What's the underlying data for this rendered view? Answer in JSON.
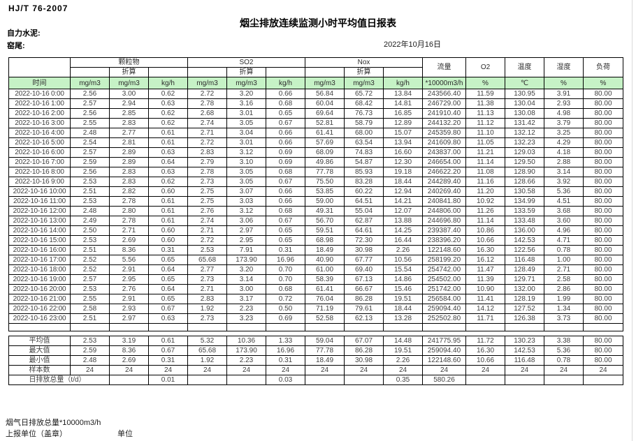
{
  "page": {
    "standard": "HJ/T 76-2007",
    "title": "烟尘排放连续监测小时平均值日报表",
    "company": "自力水泥:",
    "stack": "窑尾:",
    "date": "2022年10月16日"
  },
  "table": {
    "time_header": "时间",
    "groups": [
      "颗粒物",
      "SO2",
      "Nox"
    ],
    "converted_label": "折算",
    "single_cols": [
      "流量",
      "O2",
      "温度",
      "湿度",
      "负荷"
    ],
    "units": [
      "mg/m3",
      "mg/m3",
      "kg/h",
      "mg/m3",
      "mg/m3",
      "kg/h",
      "mg/m3",
      "mg/m3",
      "kg/h",
      "*10000m3/h",
      "%",
      "℃",
      "%",
      "%"
    ],
    "rows": [
      {
        "time": "2022-10-16 0:00",
        "values": [
          "2.56",
          "3.00",
          "0.62",
          "2.72",
          "3.20",
          "0.66",
          "56.84",
          "65.72",
          "13.84",
          "243566.40",
          "11.59",
          "130.95",
          "3.91",
          "80.00"
        ]
      },
      {
        "time": "2022-10-16 1:00",
        "values": [
          "2.57",
          "2.94",
          "0.63",
          "2.78",
          "3.16",
          "0.68",
          "60.04",
          "68.42",
          "14.81",
          "246729.00",
          "11.38",
          "130.04",
          "2.93",
          "80.00"
        ]
      },
      {
        "time": "2022-10-16 2:00",
        "values": [
          "2.56",
          "2.85",
          "0.62",
          "2.68",
          "3.01",
          "0.65",
          "69.64",
          "76.73",
          "16.85",
          "241910.40",
          "11.13",
          "130.08",
          "4.98",
          "80.00"
        ]
      },
      {
        "time": "2022-10-16 3:00",
        "values": [
          "2.55",
          "2.83",
          "0.62",
          "2.74",
          "3.05",
          "0.67",
          "52.81",
          "58.79",
          "12.89",
          "244132.20",
          "11.12",
          "131.42",
          "3.79",
          "80.00"
        ]
      },
      {
        "time": "2022-10-16 4:00",
        "values": [
          "2.48",
          "2.77",
          "0.61",
          "2.71",
          "3.04",
          "0.66",
          "61.41",
          "68.00",
          "15.07",
          "245359.80",
          "11.10",
          "132.12",
          "3.25",
          "80.00"
        ]
      },
      {
        "time": "2022-10-16 5:00",
        "values": [
          "2.54",
          "2.81",
          "0.61",
          "2.72",
          "3.01",
          "0.66",
          "57.69",
          "63.54",
          "13.94",
          "241609.80",
          "11.05",
          "132.23",
          "4.29",
          "80.00"
        ]
      },
      {
        "time": "2022-10-16 6:00",
        "values": [
          "2.57",
          "2.89",
          "0.63",
          "2.83",
          "3.12",
          "0.69",
          "68.09",
          "74.83",
          "16.60",
          "243837.00",
          "11.21",
          "129.03",
          "4.18",
          "80.00"
        ]
      },
      {
        "time": "2022-10-16 7:00",
        "values": [
          "2.59",
          "2.89",
          "0.64",
          "2.79",
          "3.10",
          "0.69",
          "49.86",
          "54.87",
          "12.30",
          "246654.00",
          "11.14",
          "129.50",
          "2.88",
          "80.00"
        ]
      },
      {
        "time": "2022-10-16 8:00",
        "values": [
          "2.56",
          "2.83",
          "0.63",
          "2.78",
          "3.05",
          "0.68",
          "77.78",
          "85.93",
          "19.18",
          "246622.20",
          "11.08",
          "128.90",
          "3.14",
          "80.00"
        ]
      },
      {
        "time": "2022-10-16 9:00",
        "values": [
          "2.53",
          "2.83",
          "0.62",
          "2.73",
          "3.05",
          "0.67",
          "75.50",
          "83.28",
          "18.44",
          "244289.40",
          "11.16",
          "128.66",
          "3.92",
          "80.00"
        ]
      },
      {
        "time": "2022-10-16 10:00",
        "values": [
          "2.51",
          "2.82",
          "0.60",
          "2.75",
          "3.07",
          "0.66",
          "53.85",
          "60.22",
          "12.94",
          "240269.40",
          "11.20",
          "130.58",
          "5.36",
          "80.00"
        ]
      },
      {
        "time": "2022-10-16 11:00",
        "values": [
          "2.53",
          "2.78",
          "0.61",
          "2.75",
          "3.03",
          "0.66",
          "59.00",
          "64.51",
          "14.21",
          "240841.80",
          "10.92",
          "134.99",
          "4.51",
          "80.00"
        ]
      },
      {
        "time": "2022-10-16 12:00",
        "values": [
          "2.48",
          "2.80",
          "0.61",
          "2.76",
          "3.12",
          "0.68",
          "49.31",
          "55.04",
          "12.07",
          "244806.00",
          "11.26",
          "133.59",
          "3.68",
          "80.00"
        ]
      },
      {
        "time": "2022-10-16 13:00",
        "values": [
          "2.49",
          "2.78",
          "0.61",
          "2.74",
          "3.06",
          "0.67",
          "56.70",
          "62.87",
          "13.88",
          "244696.80",
          "11.14",
          "133.48",
          "3.60",
          "80.00"
        ]
      },
      {
        "time": "2022-10-16 14:00",
        "values": [
          "2.50",
          "2.71",
          "0.60",
          "2.71",
          "2.97",
          "0.65",
          "59.51",
          "64.61",
          "14.25",
          "239387.40",
          "10.86",
          "136.00",
          "4.96",
          "80.00"
        ]
      },
      {
        "time": "2022-10-16 15:00",
        "values": [
          "2.53",
          "2.69",
          "0.60",
          "2.72",
          "2.95",
          "0.65",
          "68.98",
          "72.30",
          "16.44",
          "238396.20",
          "10.66",
          "142.53",
          "4.71",
          "80.00"
        ]
      },
      {
        "time": "2022-10-16 16:00",
        "values": [
          "2.51",
          "8.36",
          "0.31",
          "2.53",
          "7.91",
          "0.31",
          "18.49",
          "30.98",
          "2.26",
          "122148.60",
          "16.30",
          "122.56",
          "0.78",
          "80.00"
        ]
      },
      {
        "time": "2022-10-16 17:00",
        "values": [
          "2.52",
          "5.56",
          "0.65",
          "65.68",
          "173.90",
          "16.96",
          "40.90",
          "67.77",
          "10.56",
          "258199.20",
          "16.12",
          "116.48",
          "1.00",
          "80.00"
        ]
      },
      {
        "time": "2022-10-16 18:00",
        "values": [
          "2.52",
          "2.91",
          "0.64",
          "2.77",
          "3.20",
          "0.70",
          "61.00",
          "69.40",
          "15.54",
          "254742.00",
          "11.47",
          "128.49",
          "2.71",
          "80.00"
        ]
      },
      {
        "time": "2022-10-16 19:00",
        "values": [
          "2.57",
          "2.95",
          "0.65",
          "2.73",
          "3.14",
          "0.70",
          "58.39",
          "67.13",
          "14.86",
          "254502.00",
          "11.39",
          "129.71",
          "2.58",
          "80.00"
        ]
      },
      {
        "time": "2022-10-16 20:00",
        "values": [
          "2.53",
          "2.76",
          "0.64",
          "2.71",
          "3.00",
          "0.68",
          "61.41",
          "66.67",
          "15.46",
          "251742.00",
          "10.90",
          "132.00",
          "2.86",
          "80.00"
        ]
      },
      {
        "time": "2022-10-16 21:00",
        "values": [
          "2.55",
          "2.91",
          "0.65",
          "2.83",
          "3.17",
          "0.72",
          "76.04",
          "86.28",
          "19.51",
          "256584.00",
          "11.41",
          "128.19",
          "1.99",
          "80.00"
        ]
      },
      {
        "time": "2022-10-16 22:00",
        "values": [
          "2.58",
          "2.93",
          "0.67",
          "1.92",
          "2.23",
          "0.50",
          "71.19",
          "79.61",
          "18.44",
          "259094.40",
          "14.12",
          "127.52",
          "1.34",
          "80.00"
        ]
      },
      {
        "time": "2022-10-16 23:00",
        "values": [
          "2.51",
          "2.97",
          "0.63",
          "2.73",
          "3.23",
          "0.69",
          "52.58",
          "62.13",
          "13.28",
          "252502.80",
          "11.71",
          "126.38",
          "3.73",
          "80.00"
        ]
      }
    ],
    "summary": [
      {
        "label": "平均值",
        "values": [
          "2.53",
          "3.19",
          "0.61",
          "5.32",
          "10.36",
          "1.33",
          "59.04",
          "67.07",
          "14.48",
          "241775.95",
          "11.72",
          "130.23",
          "3.38",
          "80.00"
        ]
      },
      {
        "label": "最大值",
        "values": [
          "2.59",
          "8.36",
          "0.67",
          "65.68",
          "173.90",
          "16.96",
          "77.78",
          "86.28",
          "19.51",
          "259094.40",
          "16.30",
          "142.53",
          "5.36",
          "80.00"
        ]
      },
      {
        "label": "最小值",
        "values": [
          "2.48",
          "2.69",
          "0.31",
          "1.92",
          "2.23",
          "0.31",
          "18.49",
          "30.98",
          "2.26",
          "122148.60",
          "10.66",
          "116.48",
          "0.78",
          "80.00"
        ]
      },
      {
        "label": "样本数",
        "values": [
          "24",
          "24",
          "24",
          "24",
          "24",
          "24",
          "24",
          "24",
          "24",
          "24",
          "24",
          "24",
          "24",
          "24"
        ]
      }
    ],
    "daily_total": {
      "label": "日排放总量（t/d）",
      "cells": [
        "",
        "0.01",
        "",
        "",
        "0.03",
        "",
        "",
        "0.35",
        "580.26",
        "",
        "",
        "",
        ""
      ]
    }
  },
  "footer": {
    "flow_total_label": "烟气日排放总量*10000m3/h",
    "report_unit_label": "上报单位（盖章）",
    "unit_label": "单位"
  }
}
